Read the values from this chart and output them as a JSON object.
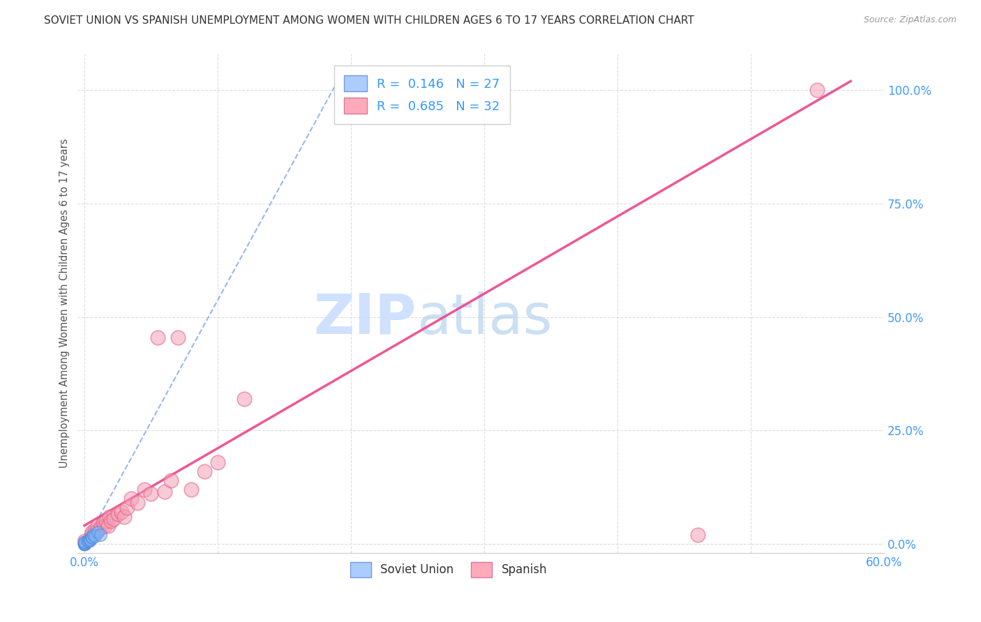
{
  "title": "SOVIET UNION VS SPANISH UNEMPLOYMENT AMONG WOMEN WITH CHILDREN AGES 6 TO 17 YEARS CORRELATION CHART",
  "source": "Source: ZipAtlas.com",
  "ylabel": "Unemployment Among Women with Children Ages 6 to 17 years",
  "xlabel_soviet": "Soviet Union",
  "xlabel_spanish": "Spanish",
  "watermark_zip": "ZIP",
  "watermark_atlas": "atlas",
  "xlim": [
    -0.005,
    0.6
  ],
  "ylim": [
    -0.02,
    1.08
  ],
  "xticks": [
    0.0,
    0.1,
    0.2,
    0.3,
    0.4,
    0.5,
    0.6
  ],
  "yticks": [
    0.0,
    0.25,
    0.5,
    0.75,
    1.0
  ],
  "ytick_labels": [
    "0.0%",
    "25.0%",
    "50.0%",
    "75.0%",
    "100.0%"
  ],
  "xtick_labels": [
    "0.0%",
    "",
    "",
    "",
    "",
    "",
    "60.0%"
  ],
  "legend_soviet_label": "R =  0.146   N = 27",
  "legend_spanish_label": "R =  0.685   N = 32",
  "soviet_color": "#7EB3F5",
  "spanish_color": "#F5A0B8",
  "soviet_edge_color": "#5588DD",
  "spanish_edge_color": "#E06080",
  "soviet_line_color": "#88AAEE",
  "spanish_line_color": "#EE4488",
  "title_color": "#333333",
  "axis_label_color": "#555555",
  "tick_color": "#4499FF",
  "grid_color": "#DDDDDD",
  "soviet_scatter_x": [
    0.0,
    0.0,
    0.0,
    0.0,
    0.0,
    0.0,
    0.0,
    0.0,
    0.0,
    0.0,
    0.0,
    0.0,
    0.0,
    0.0,
    0.0,
    0.002,
    0.003,
    0.003,
    0.004,
    0.004,
    0.005,
    0.005,
    0.006,
    0.007,
    0.008,
    0.01,
    0.012
  ],
  "soviet_scatter_y": [
    0.0,
    0.0,
    0.0,
    0.0,
    0.0,
    0.0,
    0.0,
    0.0,
    0.0,
    0.0,
    0.0,
    0.0,
    0.002,
    0.003,
    0.004,
    0.005,
    0.005,
    0.007,
    0.007,
    0.01,
    0.015,
    0.017,
    0.014,
    0.02,
    0.016,
    0.025,
    0.02
  ],
  "spanish_scatter_x": [
    0.0,
    0.005,
    0.006,
    0.008,
    0.009,
    0.01,
    0.012,
    0.014,
    0.015,
    0.016,
    0.018,
    0.019,
    0.02,
    0.022,
    0.025,
    0.028,
    0.03,
    0.032,
    0.035,
    0.04,
    0.045,
    0.05,
    0.055,
    0.06,
    0.065,
    0.07,
    0.08,
    0.09,
    0.1,
    0.12,
    0.46,
    0.55
  ],
  "spanish_scatter_y": [
    0.005,
    0.02,
    0.025,
    0.03,
    0.025,
    0.04,
    0.035,
    0.045,
    0.04,
    0.05,
    0.04,
    0.06,
    0.05,
    0.055,
    0.065,
    0.07,
    0.06,
    0.08,
    0.1,
    0.09,
    0.12,
    0.11,
    0.455,
    0.115,
    0.14,
    0.455,
    0.12,
    0.16,
    0.18,
    0.32,
    0.02,
    1.0
  ],
  "soviet_trendline_x": [
    0.0,
    0.19
  ],
  "soviet_trendline_y": [
    0.0,
    1.02
  ],
  "spanish_trendline_x": [
    0.0,
    0.575
  ],
  "spanish_trendline_y": [
    0.04,
    1.02
  ]
}
